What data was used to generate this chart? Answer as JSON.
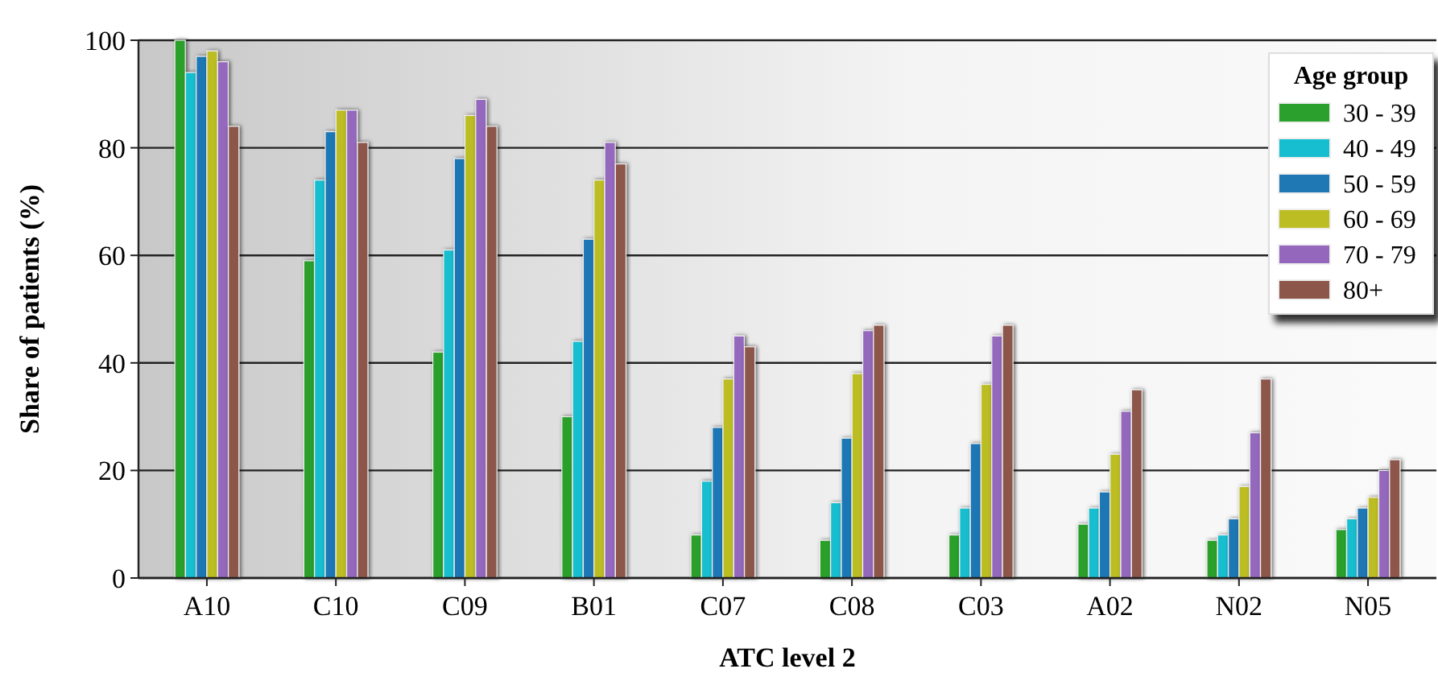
{
  "chart_data": {
    "type": "bar",
    "xlabel": "ATC level 2",
    "ylabel": "Share of patients (%)",
    "legend_title": "Age group",
    "legend": "top right",
    "grid": "y",
    "categories": [
      "A10",
      "C10",
      "C09",
      "B01",
      "C07",
      "C08",
      "C03",
      "A02",
      "N02",
      "N05"
    ],
    "ylim": [
      0,
      100
    ],
    "yticks": [
      0,
      20,
      40,
      60,
      80,
      100
    ],
    "series": [
      {
        "name": "30 - 39",
        "color": "#2ca02c",
        "values": [
          100,
          59,
          42,
          30,
          8,
          7,
          8,
          10,
          7,
          9
        ]
      },
      {
        "name": "40 - 49",
        "color": "#17becf",
        "values": [
          94,
          74,
          61,
          44,
          18,
          14,
          13,
          13,
          8,
          11
        ]
      },
      {
        "name": "50 - 59",
        "color": "#1f77b4",
        "values": [
          97,
          83,
          78,
          63,
          28,
          26,
          25,
          16,
          11,
          13
        ]
      },
      {
        "name": "60 - 69",
        "color": "#bcbd22",
        "values": [
          98,
          87,
          86,
          74,
          37,
          38,
          36,
          23,
          17,
          15
        ]
      },
      {
        "name": "70 - 79",
        "color": "#9467bd",
        "values": [
          96,
          87,
          89,
          81,
          45,
          46,
          45,
          31,
          27,
          20
        ]
      },
      {
        "name": "80+",
        "color": "#8c564b",
        "values": [
          84,
          81,
          84,
          77,
          43,
          47,
          47,
          35,
          37,
          22
        ]
      }
    ]
  }
}
